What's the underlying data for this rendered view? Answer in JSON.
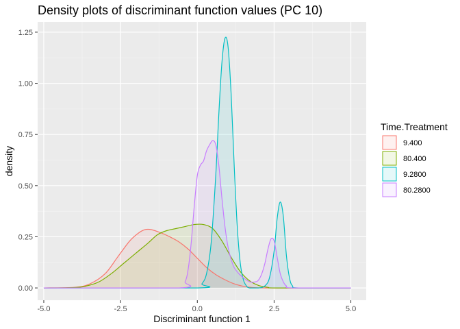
{
  "chart_data": {
    "type": "area",
    "title": "Density plots of discriminant function values (PC 10)",
    "xlabel": "Discriminant function 1",
    "ylabel": "density",
    "xlim": [
      -5.2,
      5.5
    ],
    "ylim": [
      -0.06,
      1.3
    ],
    "x_ticks": [
      -5.0,
      -2.5,
      0.0,
      2.5,
      5.0
    ],
    "x_tick_labels": [
      "-5.0",
      "-2.5",
      "0.0",
      "2.5",
      "5.0"
    ],
    "y_ticks": [
      0.0,
      0.25,
      0.5,
      0.75,
      1.0,
      1.25
    ],
    "y_tick_labels": [
      "0.00",
      "0.25",
      "0.50",
      "0.75",
      "1.00",
      "1.25"
    ],
    "grid": true,
    "legend": {
      "title": "Time.Treatment",
      "position": "right"
    },
    "series": [
      {
        "name": "9.400",
        "color": "#F8766D",
        "x": [
          -5.0,
          -4.0,
          -3.5,
          -3.0,
          -2.6,
          -2.2,
          -1.9,
          -1.7,
          -1.5,
          -1.2,
          -0.9,
          -0.6,
          -0.3,
          0.0,
          0.3,
          0.6,
          0.9,
          1.2,
          1.5,
          1.8,
          2.2,
          2.6,
          5.0
        ],
        "y": [
          0.0,
          0.003,
          0.02,
          0.07,
          0.15,
          0.23,
          0.27,
          0.285,
          0.285,
          0.27,
          0.25,
          0.225,
          0.19,
          0.145,
          0.1,
          0.065,
          0.04,
          0.02,
          0.008,
          0.002,
          0.0,
          0.0,
          0.0
        ]
      },
      {
        "name": "80.400",
        "color": "#7CAE00",
        "x": [
          -5.0,
          -4.0,
          -3.6,
          -3.2,
          -2.8,
          -2.4,
          -2.0,
          -1.6,
          -1.3,
          -1.0,
          -0.7,
          -0.4,
          -0.1,
          0.2,
          0.5,
          0.8,
          1.1,
          1.4,
          1.7,
          2.0,
          2.3,
          2.6,
          5.0
        ],
        "y": [
          0.0,
          0.002,
          0.01,
          0.03,
          0.07,
          0.12,
          0.17,
          0.22,
          0.26,
          0.28,
          0.29,
          0.3,
          0.31,
          0.31,
          0.29,
          0.23,
          0.15,
          0.08,
          0.035,
          0.012,
          0.003,
          0.0,
          0.0
        ]
      },
      {
        "name": "9.2800",
        "color": "#00BFC4",
        "x": [
          -5.0,
          0.0,
          0.15,
          0.3,
          0.45,
          0.6,
          0.7,
          0.8,
          0.9,
          1.0,
          1.1,
          1.2,
          1.3,
          1.4,
          1.5,
          1.6,
          1.7,
          2.0,
          2.2,
          2.35,
          2.5,
          2.6,
          2.7,
          2.8,
          2.9,
          3.0,
          3.1,
          3.3,
          5.0
        ],
        "y": [
          0.0,
          0.0,
          0.02,
          0.07,
          0.22,
          0.55,
          0.85,
          1.1,
          1.22,
          1.18,
          0.95,
          0.6,
          0.3,
          0.12,
          0.04,
          0.01,
          0.0,
          0.0,
          0.01,
          0.05,
          0.18,
          0.34,
          0.42,
          0.35,
          0.16,
          0.05,
          0.01,
          0.0,
          0.0
        ]
      },
      {
        "name": "80.2800",
        "color": "#C77CFF",
        "x": [
          -5.0,
          -0.6,
          -0.4,
          -0.3,
          -0.2,
          -0.1,
          0.0,
          0.1,
          0.2,
          0.3,
          0.4,
          0.5,
          0.6,
          0.7,
          0.8,
          0.9,
          1.0,
          1.1,
          1.2,
          1.35,
          1.5,
          1.7,
          1.9,
          2.0,
          2.1,
          2.2,
          2.3,
          2.4,
          2.5,
          2.6,
          2.7,
          2.8,
          2.9,
          3.1,
          5.0
        ],
        "y": [
          0.0,
          0.0,
          0.03,
          0.09,
          0.22,
          0.4,
          0.55,
          0.6,
          0.62,
          0.67,
          0.7,
          0.72,
          0.7,
          0.6,
          0.44,
          0.3,
          0.2,
          0.14,
          0.1,
          0.07,
          0.05,
          0.03,
          0.03,
          0.04,
          0.07,
          0.12,
          0.19,
          0.24,
          0.23,
          0.15,
          0.07,
          0.03,
          0.01,
          0.0,
          0.0
        ]
      }
    ]
  }
}
